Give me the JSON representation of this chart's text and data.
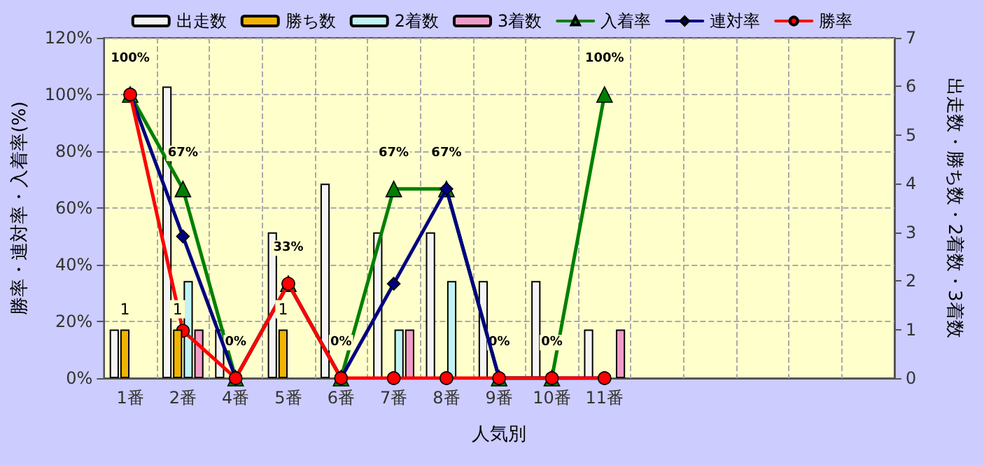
{
  "chart_data": {
    "type": "bar",
    "xlabel": "人気別",
    "ylabel": "勝率・連対率・入着率(%)",
    "y2label": "出走数・勝ち数・2着数・3着数",
    "categories": [
      "1番",
      "2番",
      "4番",
      "5番",
      "6番",
      "7番",
      "8番",
      "9番",
      "10番",
      "11番",
      null,
      null,
      null,
      null,
      null
    ],
    "series": [
      {
        "name": "出走数",
        "axis": "y2",
        "color": "#f4f4f4",
        "values": [
          1,
          6,
          1,
          3,
          4,
          3,
          3,
          2,
          2,
          1,
          null,
          null,
          null,
          null,
          null
        ]
      },
      {
        "name": "勝ち数",
        "axis": "y2",
        "color": "#f0b400",
        "values": [
          1,
          1,
          0,
          1,
          0,
          0,
          0,
          0,
          0,
          0,
          null,
          null,
          null,
          null,
          null
        ],
        "value_labels": [
          "1",
          "1",
          null,
          "1",
          null,
          null,
          null,
          null,
          null,
          null,
          null,
          null,
          null,
          null,
          null
        ]
      },
      {
        "name": "2着数",
        "axis": "y2",
        "color": "#c0f4f4",
        "values": [
          0,
          2,
          0,
          0,
          0,
          1,
          2,
          0,
          0,
          0,
          null,
          null,
          null,
          null,
          null
        ]
      },
      {
        "name": "3着数",
        "axis": "y2",
        "color": "#f09cc8",
        "values": [
          0,
          1,
          0,
          0,
          0,
          1,
          0,
          0,
          0,
          1,
          null,
          null,
          null,
          null,
          null
        ]
      },
      {
        "name": "入着率",
        "type": "line",
        "marker": "triangle",
        "color": "#008000",
        "values": [
          100,
          66.7,
          0,
          33.3,
          0,
          66.7,
          66.7,
          0,
          0,
          100,
          null,
          null,
          null,
          null,
          null
        ],
        "value_labels": [
          "100%",
          "67%",
          "0%",
          "33%",
          "0%",
          "67%",
          "67%",
          "0%",
          "0%",
          "100%",
          null,
          null,
          null,
          null,
          null
        ]
      },
      {
        "name": "連対率",
        "type": "line",
        "marker": "diamond",
        "color": "#000080",
        "values": [
          100,
          50,
          0,
          33.3,
          0,
          33.3,
          66.7,
          0,
          0,
          0,
          null,
          null,
          null,
          null,
          null
        ]
      },
      {
        "name": "勝率",
        "type": "line",
        "marker": "circle",
        "color": "#ff0000",
        "values": [
          100,
          16.7,
          0,
          33.3,
          0,
          0,
          0,
          0,
          0,
          0,
          null,
          null,
          null,
          null,
          null
        ]
      }
    ],
    "ylim": [
      0,
      120
    ],
    "yticks": [
      {
        "value": 0,
        "label": "0%"
      },
      {
        "value": 20,
        "label": "20%"
      },
      {
        "value": 40,
        "label": "40%"
      },
      {
        "value": 60,
        "label": "60%"
      },
      {
        "value": 80,
        "label": "80%"
      },
      {
        "value": 100,
        "label": "100%"
      },
      {
        "value": 120,
        "label": "120%"
      }
    ],
    "y2lim": [
      0,
      7
    ],
    "y2ticks": [
      0,
      1,
      2,
      3,
      4,
      5,
      6,
      7
    ],
    "grid": true,
    "legend": "top",
    "line_style": "solid"
  }
}
